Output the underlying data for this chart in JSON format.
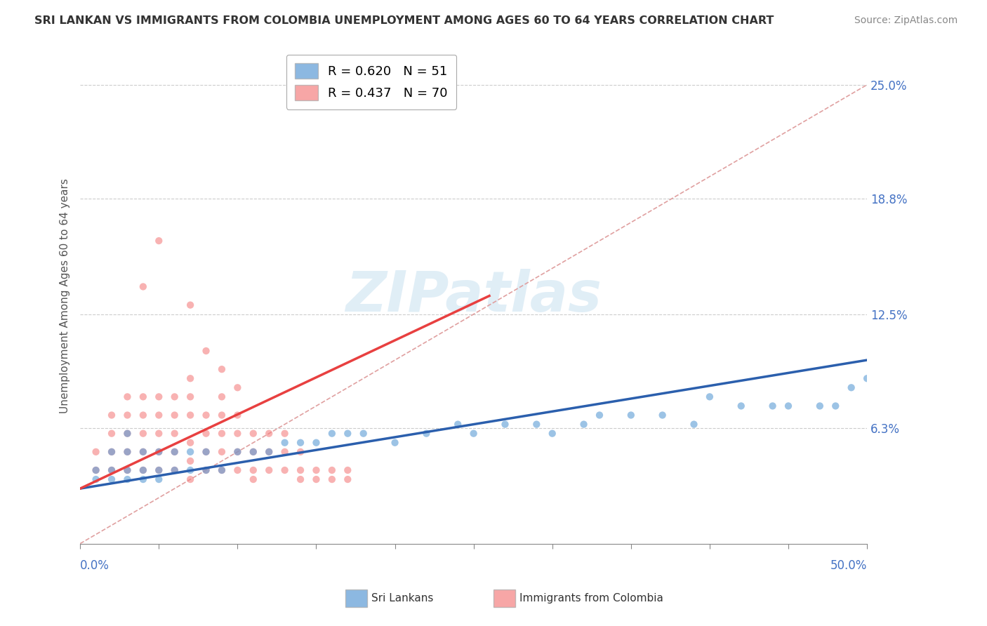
{
  "title": "SRI LANKAN VS IMMIGRANTS FROM COLOMBIA UNEMPLOYMENT AMONG AGES 60 TO 64 YEARS CORRELATION CHART",
  "source": "Source: ZipAtlas.com",
  "ylabel": "Unemployment Among Ages 60 to 64 years",
  "yticks": [
    0.0,
    0.063,
    0.125,
    0.188,
    0.25
  ],
  "xmin": 0.0,
  "xmax": 0.5,
  "ymin": 0.0,
  "ymax": 0.27,
  "sri_lanka_color": "#5b9bd5",
  "colombia_color": "#f48080",
  "sri_lanka_line_color": "#2b5fad",
  "colombia_line_color": "#e84040",
  "ref_line_color": "#e0a0a0",
  "sri_lanka_scatter": [
    [
      0.01,
      0.035
    ],
    [
      0.01,
      0.04
    ],
    [
      0.02,
      0.035
    ],
    [
      0.02,
      0.04
    ],
    [
      0.02,
      0.05
    ],
    [
      0.03,
      0.035
    ],
    [
      0.03,
      0.04
    ],
    [
      0.03,
      0.05
    ],
    [
      0.03,
      0.06
    ],
    [
      0.04,
      0.035
    ],
    [
      0.04,
      0.04
    ],
    [
      0.04,
      0.05
    ],
    [
      0.05,
      0.035
    ],
    [
      0.05,
      0.04
    ],
    [
      0.05,
      0.05
    ],
    [
      0.06,
      0.04
    ],
    [
      0.06,
      0.05
    ],
    [
      0.07,
      0.04
    ],
    [
      0.07,
      0.05
    ],
    [
      0.08,
      0.04
    ],
    [
      0.08,
      0.05
    ],
    [
      0.09,
      0.04
    ],
    [
      0.1,
      0.05
    ],
    [
      0.11,
      0.05
    ],
    [
      0.12,
      0.05
    ],
    [
      0.13,
      0.055
    ],
    [
      0.14,
      0.055
    ],
    [
      0.15,
      0.055
    ],
    [
      0.16,
      0.06
    ],
    [
      0.17,
      0.06
    ],
    [
      0.18,
      0.06
    ],
    [
      0.2,
      0.055
    ],
    [
      0.22,
      0.06
    ],
    [
      0.24,
      0.065
    ],
    [
      0.25,
      0.06
    ],
    [
      0.27,
      0.065
    ],
    [
      0.29,
      0.065
    ],
    [
      0.3,
      0.06
    ],
    [
      0.32,
      0.065
    ],
    [
      0.33,
      0.07
    ],
    [
      0.35,
      0.07
    ],
    [
      0.37,
      0.07
    ],
    [
      0.39,
      0.065
    ],
    [
      0.4,
      0.08
    ],
    [
      0.42,
      0.075
    ],
    [
      0.44,
      0.075
    ],
    [
      0.45,
      0.075
    ],
    [
      0.47,
      0.075
    ],
    [
      0.48,
      0.075
    ],
    [
      0.49,
      0.085
    ],
    [
      0.5,
      0.09
    ]
  ],
  "colombia_scatter": [
    [
      0.01,
      0.04
    ],
    [
      0.01,
      0.05
    ],
    [
      0.02,
      0.04
    ],
    [
      0.02,
      0.05
    ],
    [
      0.02,
      0.06
    ],
    [
      0.02,
      0.07
    ],
    [
      0.03,
      0.04
    ],
    [
      0.03,
      0.05
    ],
    [
      0.03,
      0.06
    ],
    [
      0.03,
      0.07
    ],
    [
      0.03,
      0.08
    ],
    [
      0.04,
      0.04
    ],
    [
      0.04,
      0.05
    ],
    [
      0.04,
      0.06
    ],
    [
      0.04,
      0.07
    ],
    [
      0.04,
      0.08
    ],
    [
      0.05,
      0.04
    ],
    [
      0.05,
      0.05
    ],
    [
      0.05,
      0.06
    ],
    [
      0.05,
      0.07
    ],
    [
      0.05,
      0.08
    ],
    [
      0.06,
      0.04
    ],
    [
      0.06,
      0.05
    ],
    [
      0.06,
      0.06
    ],
    [
      0.06,
      0.07
    ],
    [
      0.06,
      0.08
    ],
    [
      0.07,
      0.035
    ],
    [
      0.07,
      0.045
    ],
    [
      0.07,
      0.055
    ],
    [
      0.07,
      0.07
    ],
    [
      0.07,
      0.08
    ],
    [
      0.07,
      0.09
    ],
    [
      0.08,
      0.04
    ],
    [
      0.08,
      0.05
    ],
    [
      0.08,
      0.06
    ],
    [
      0.08,
      0.07
    ],
    [
      0.09,
      0.04
    ],
    [
      0.09,
      0.05
    ],
    [
      0.09,
      0.06
    ],
    [
      0.09,
      0.07
    ],
    [
      0.09,
      0.08
    ],
    [
      0.1,
      0.04
    ],
    [
      0.1,
      0.05
    ],
    [
      0.1,
      0.06
    ],
    [
      0.1,
      0.07
    ],
    [
      0.11,
      0.035
    ],
    [
      0.11,
      0.04
    ],
    [
      0.11,
      0.05
    ],
    [
      0.11,
      0.06
    ],
    [
      0.12,
      0.04
    ],
    [
      0.12,
      0.05
    ],
    [
      0.12,
      0.06
    ],
    [
      0.13,
      0.04
    ],
    [
      0.13,
      0.05
    ],
    [
      0.13,
      0.06
    ],
    [
      0.14,
      0.035
    ],
    [
      0.14,
      0.04
    ],
    [
      0.14,
      0.05
    ],
    [
      0.15,
      0.035
    ],
    [
      0.15,
      0.04
    ],
    [
      0.16,
      0.035
    ],
    [
      0.16,
      0.04
    ],
    [
      0.17,
      0.035
    ],
    [
      0.17,
      0.04
    ],
    [
      0.05,
      0.165
    ],
    [
      0.07,
      0.13
    ],
    [
      0.08,
      0.105
    ],
    [
      0.09,
      0.095
    ],
    [
      0.1,
      0.085
    ],
    [
      0.04,
      0.14
    ]
  ],
  "sri_lanka_trend": [
    0.0,
    0.5,
    0.03,
    0.1
  ],
  "colombia_trend": [
    0.0,
    0.26,
    0.03,
    0.135
  ],
  "legend_items": [
    {
      "label": "R = 0.620   N = 51",
      "color": "#5b9bd5"
    },
    {
      "label": "R = 0.437   N = 70",
      "color": "#f48080"
    }
  ]
}
